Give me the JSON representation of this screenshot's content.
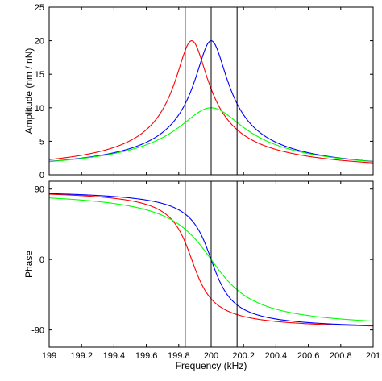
{
  "chart_data": [
    {
      "type": "line",
      "title": "",
      "xlabel": "",
      "ylabel": "Amplitude (nm / nN)",
      "xlim": [
        199.0,
        201.0
      ],
      "ylim": [
        0,
        25
      ],
      "yticks": [
        0,
        5,
        10,
        15,
        20,
        25
      ],
      "ytick_labels": [
        "0",
        "5",
        "10",
        "15",
        "20",
        "25"
      ],
      "xticks": [
        199.0,
        199.2,
        199.4,
        199.6,
        199.8,
        200.0,
        200.2,
        200.4,
        200.6,
        200.8,
        201.0
      ],
      "xtick_labels": [],
      "grid": false,
      "legend": "none",
      "vertical_lines": [
        199.84,
        200.0,
        200.16
      ],
      "series": [
        {
          "color": "#ff0000",
          "resonance_khz": 199.88,
          "peak": 20.0,
          "fwhm_khz": 0.2
        },
        {
          "color": "#0000ff",
          "resonance_khz": 200.0,
          "peak": 20.0,
          "fwhm_khz": 0.2
        },
        {
          "color": "#00ff00",
          "resonance_khz": 200.0,
          "peak": 10.0,
          "fwhm_khz": 0.4
        }
      ]
    },
    {
      "type": "line",
      "title": "",
      "xlabel": "Frequency (kHz)",
      "ylabel": "Phase",
      "xlim": [
        199.0,
        201.0
      ],
      "ylim": [
        -112,
        100
      ],
      "yticks": [
        90,
        0,
        -90
      ],
      "ytick_labels": [
        "90",
        "0",
        "-90"
      ],
      "xticks": [
        199.0,
        199.2,
        199.4,
        199.6,
        199.8,
        200.0,
        200.2,
        200.4,
        200.6,
        200.8,
        201.0
      ],
      "xtick_labels": [
        "199",
        "199.2",
        "199.4",
        "199.6",
        "199.8",
        "200",
        "200.2",
        "200.4",
        "200.6",
        "200.8",
        "201"
      ],
      "grid": false,
      "legend": "none",
      "vertical_lines": [
        199.84,
        200.0,
        200.16
      ],
      "series": [
        {
          "color": "#ff0000",
          "resonance_khz": 199.88,
          "fwhm_khz": 0.2
        },
        {
          "color": "#0000ff",
          "resonance_khz": 200.0,
          "fwhm_khz": 0.2
        },
        {
          "color": "#00ff00",
          "resonance_khz": 200.0,
          "fwhm_khz": 0.4
        }
      ]
    }
  ]
}
